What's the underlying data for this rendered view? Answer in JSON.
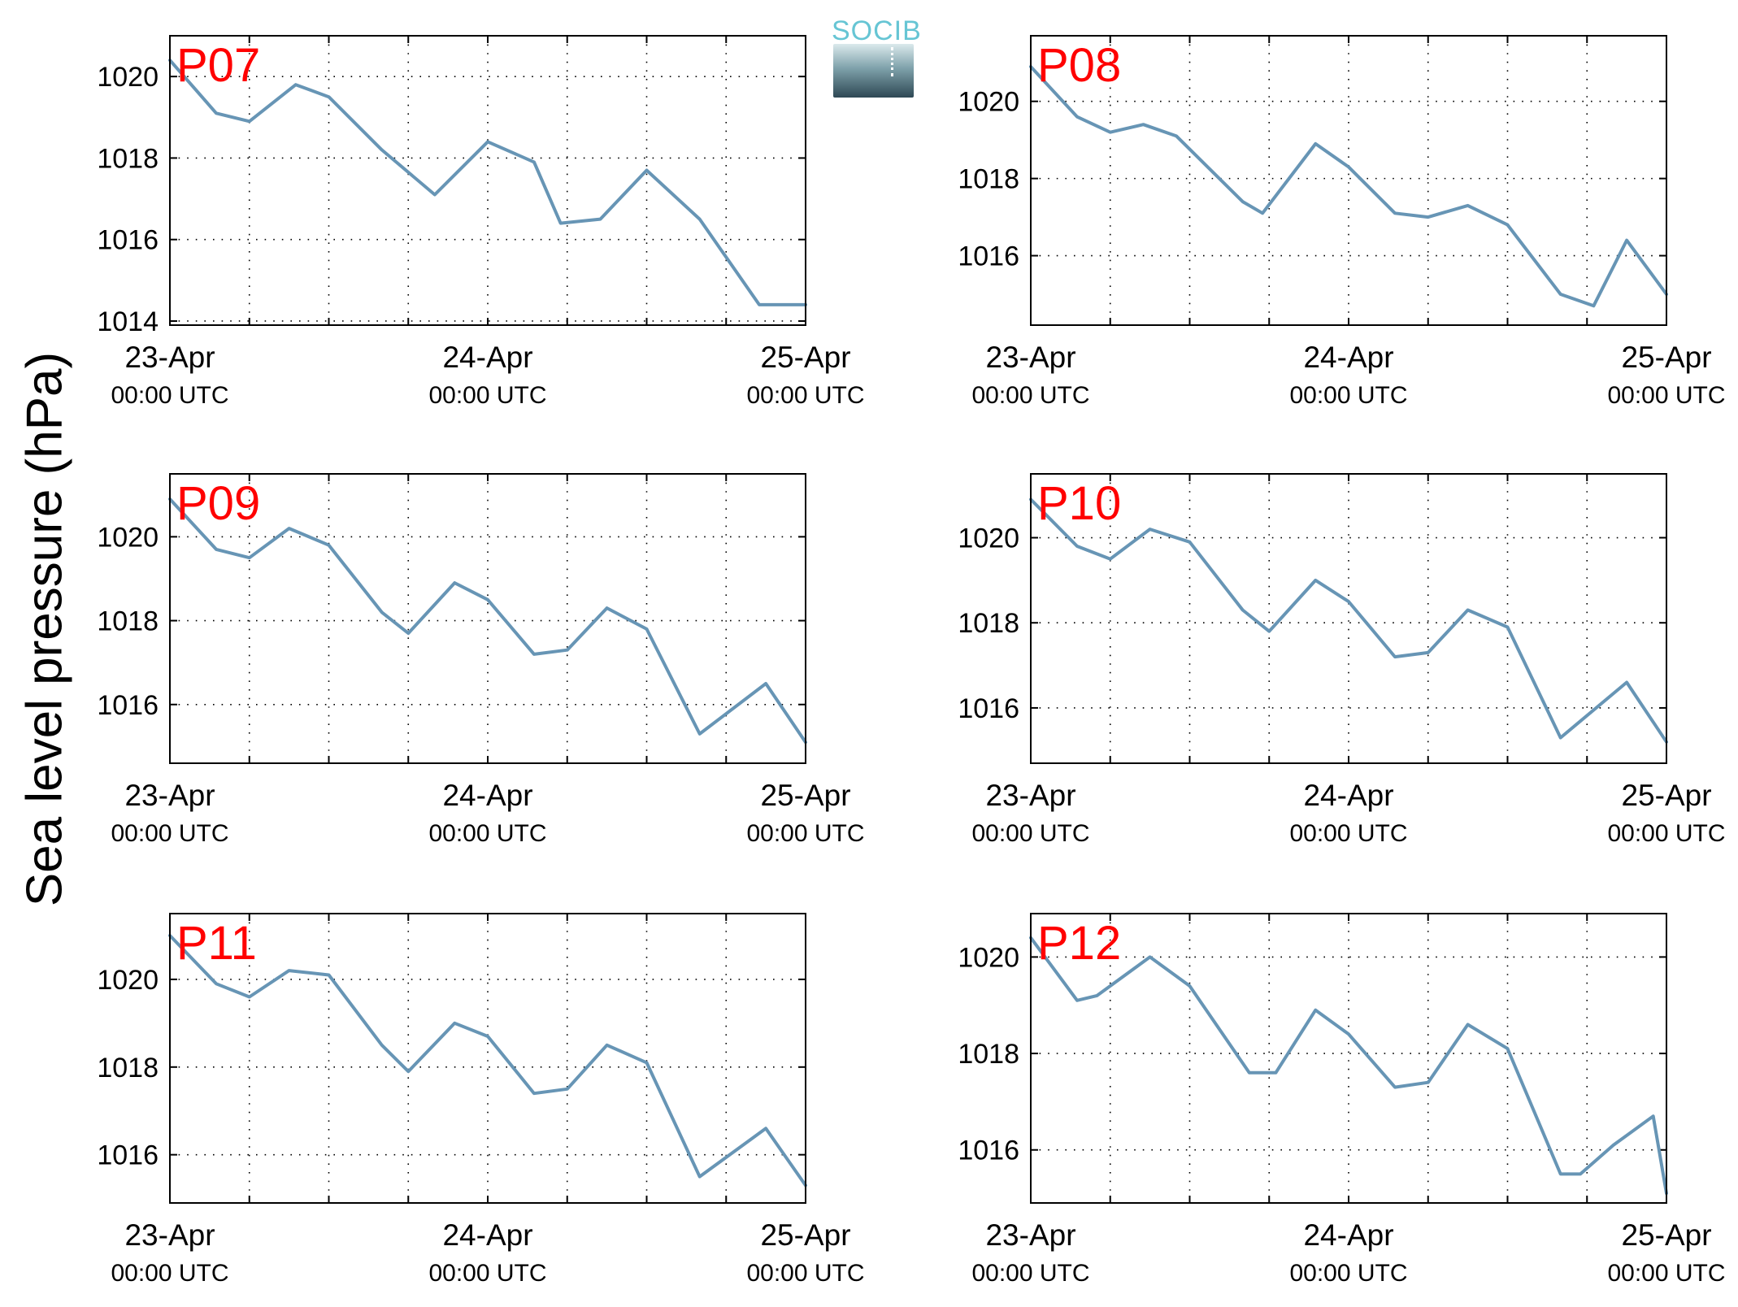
{
  "ylabel": "Sea level pressure (hPa)",
  "logo_text": "SOCIB",
  "colors": {
    "line": "#6795b5",
    "panel_label": "#ff0000",
    "axes": "#000000",
    "grid": "#000000"
  },
  "chart_data": [
    {
      "type": "line",
      "panel_label": "P07",
      "x": [
        "2014-04-23T00:00",
        "2014-04-23T03:30",
        "2014-04-23T06:00",
        "2014-04-23T09:30",
        "2014-04-23T12:00",
        "2014-04-23T16:00",
        "2014-04-23T20:00",
        "2014-04-24T00:00",
        "2014-04-24T03:30",
        "2014-04-24T05:30",
        "2014-04-24T08:30",
        "2014-04-24T12:00",
        "2014-04-24T16:00",
        "2014-04-24T20:30",
        "2014-04-25T00:00"
      ],
      "y": [
        1020.4,
        1019.1,
        1018.9,
        1019.8,
        1019.5,
        1018.2,
        1017.1,
        1018.4,
        1017.9,
        1016.4,
        1016.5,
        1017.7,
        1016.5,
        1014.4,
        1014.4
      ],
      "xlabel_ticks": [
        {
          "date": "23-Apr",
          "time": "00:00 UTC"
        },
        {
          "date": "24-Apr",
          "time": "00:00 UTC"
        },
        {
          "date": "25-Apr",
          "time": "00:00 UTC"
        }
      ],
      "yticks": [
        1014,
        1016,
        1018,
        1020
      ],
      "ylim": [
        1013.9,
        1021
      ],
      "xlim": [
        "2014-04-23T00:00",
        "2014-04-25T00:00"
      ],
      "grid": true
    },
    {
      "type": "line",
      "panel_label": "P08",
      "x": [
        "2014-04-23T00:00",
        "2014-04-23T03:30",
        "2014-04-23T06:00",
        "2014-04-23T08:30",
        "2014-04-23T11:00",
        "2014-04-23T16:00",
        "2014-04-23T17:30",
        "2014-04-23T21:30",
        "2014-04-24T00:00",
        "2014-04-24T03:30",
        "2014-04-24T06:00",
        "2014-04-24T09:00",
        "2014-04-24T12:00",
        "2014-04-24T16:00",
        "2014-04-24T18:30",
        "2014-04-24T21:00",
        "2014-04-25T00:00"
      ],
      "y": [
        1020.9,
        1019.6,
        1019.2,
        1019.4,
        1019.1,
        1017.4,
        1017.1,
        1018.9,
        1018.3,
        1017.1,
        1017.0,
        1017.3,
        1016.8,
        1015.0,
        1014.7,
        1016.4,
        1015.0
      ],
      "xlabel_ticks": [
        {
          "date": "23-Apr",
          "time": "00:00 UTC"
        },
        {
          "date": "24-Apr",
          "time": "00:00 UTC"
        },
        {
          "date": "25-Apr",
          "time": "00:00 UTC"
        }
      ],
      "yticks": [
        1016,
        1018,
        1020
      ],
      "ylim": [
        1014.2,
        1021.7
      ],
      "xlim": [
        "2014-04-23T00:00",
        "2014-04-25T00:00"
      ],
      "grid": true
    },
    {
      "type": "line",
      "panel_label": "P09",
      "x": [
        "2014-04-23T00:00",
        "2014-04-23T03:30",
        "2014-04-23T06:00",
        "2014-04-23T09:00",
        "2014-04-23T12:00",
        "2014-04-23T16:00",
        "2014-04-23T18:00",
        "2014-04-23T21:30",
        "2014-04-24T00:00",
        "2014-04-24T03:30",
        "2014-04-24T06:00",
        "2014-04-24T09:00",
        "2014-04-24T12:00",
        "2014-04-24T16:00",
        "2014-04-24T21:00",
        "2014-04-25T00:00"
      ],
      "y": [
        1020.9,
        1019.7,
        1019.5,
        1020.2,
        1019.8,
        1018.2,
        1017.7,
        1018.9,
        1018.5,
        1017.2,
        1017.3,
        1018.3,
        1017.8,
        1015.3,
        1016.5,
        1015.1
      ],
      "xlabel_ticks": [
        {
          "date": "23-Apr",
          "time": "00:00 UTC"
        },
        {
          "date": "24-Apr",
          "time": "00:00 UTC"
        },
        {
          "date": "25-Apr",
          "time": "00:00 UTC"
        }
      ],
      "yticks": [
        1016,
        1018,
        1020
      ],
      "ylim": [
        1014.6,
        1021.5
      ],
      "xlim": [
        "2014-04-23T00:00",
        "2014-04-25T00:00"
      ],
      "grid": true
    },
    {
      "type": "line",
      "panel_label": "P10",
      "x": [
        "2014-04-23T00:00",
        "2014-04-23T03:30",
        "2014-04-23T06:00",
        "2014-04-23T09:00",
        "2014-04-23T12:00",
        "2014-04-23T16:00",
        "2014-04-23T18:00",
        "2014-04-23T21:30",
        "2014-04-24T00:00",
        "2014-04-24T03:30",
        "2014-04-24T06:00",
        "2014-04-24T09:00",
        "2014-04-24T12:00",
        "2014-04-24T16:00",
        "2014-04-24T21:00",
        "2014-04-25T00:00"
      ],
      "y": [
        1020.9,
        1019.8,
        1019.5,
        1020.2,
        1019.9,
        1018.3,
        1017.8,
        1019.0,
        1018.5,
        1017.2,
        1017.3,
        1018.3,
        1017.9,
        1015.3,
        1016.6,
        1015.2
      ],
      "xlabel_ticks": [
        {
          "date": "23-Apr",
          "time": "00:00 UTC"
        },
        {
          "date": "24-Apr",
          "time": "00:00 UTC"
        },
        {
          "date": "25-Apr",
          "time": "00:00 UTC"
        }
      ],
      "yticks": [
        1016,
        1018,
        1020
      ],
      "ylim": [
        1014.7,
        1021.5
      ],
      "xlim": [
        "2014-04-23T00:00",
        "2014-04-25T00:00"
      ],
      "grid": true
    },
    {
      "type": "line",
      "panel_label": "P11",
      "x": [
        "2014-04-23T00:00",
        "2014-04-23T03:30",
        "2014-04-23T06:00",
        "2014-04-23T09:00",
        "2014-04-23T12:00",
        "2014-04-23T16:00",
        "2014-04-23T18:00",
        "2014-04-23T21:30",
        "2014-04-24T00:00",
        "2014-04-24T03:30",
        "2014-04-24T06:00",
        "2014-04-24T09:00",
        "2014-04-24T12:00",
        "2014-04-24T16:00",
        "2014-04-24T21:00",
        "2014-04-25T00:00"
      ],
      "y": [
        1021.0,
        1019.9,
        1019.6,
        1020.2,
        1020.1,
        1018.5,
        1017.9,
        1019.0,
        1018.7,
        1017.4,
        1017.5,
        1018.5,
        1018.1,
        1015.5,
        1016.6,
        1015.3
      ],
      "xlabel_ticks": [
        {
          "date": "23-Apr",
          "time": "00:00 UTC"
        },
        {
          "date": "24-Apr",
          "time": "00:00 UTC"
        },
        {
          "date": "25-Apr",
          "time": "00:00 UTC"
        }
      ],
      "yticks": [
        1016,
        1018,
        1020
      ],
      "ylim": [
        1014.9,
        1021.5
      ],
      "xlim": [
        "2014-04-23T00:00",
        "2014-04-25T00:00"
      ],
      "grid": true
    },
    {
      "type": "line",
      "panel_label": "P12",
      "x": [
        "2014-04-23T00:00",
        "2014-04-23T03:30",
        "2014-04-23T05:00",
        "2014-04-23T09:00",
        "2014-04-23T12:00",
        "2014-04-23T16:30",
        "2014-04-23T18:30",
        "2014-04-23T21:30",
        "2014-04-24T00:00",
        "2014-04-24T03:30",
        "2014-04-24T06:00",
        "2014-04-24T09:00",
        "2014-04-24T12:00",
        "2014-04-24T16:00",
        "2014-04-24T17:30",
        "2014-04-24T20:00",
        "2014-04-24T23:00",
        "2014-04-25T00:00"
      ],
      "y": [
        1020.4,
        1019.1,
        1019.2,
        1020.0,
        1019.4,
        1017.6,
        1017.6,
        1018.9,
        1018.4,
        1017.3,
        1017.4,
        1018.6,
        1018.1,
        1015.5,
        1015.5,
        1016.1,
        1016.7,
        1015.1
      ],
      "xlabel_ticks": [
        {
          "date": "23-Apr",
          "time": "00:00 UTC"
        },
        {
          "date": "24-Apr",
          "time": "00:00 UTC"
        },
        {
          "date": "25-Apr",
          "time": "00:00 UTC"
        }
      ],
      "yticks": [
        1016,
        1018,
        1020
      ],
      "ylim": [
        1014.9,
        1020.9
      ],
      "xlim": [
        "2014-04-23T00:00",
        "2014-04-25T00:00"
      ],
      "grid": true
    }
  ]
}
